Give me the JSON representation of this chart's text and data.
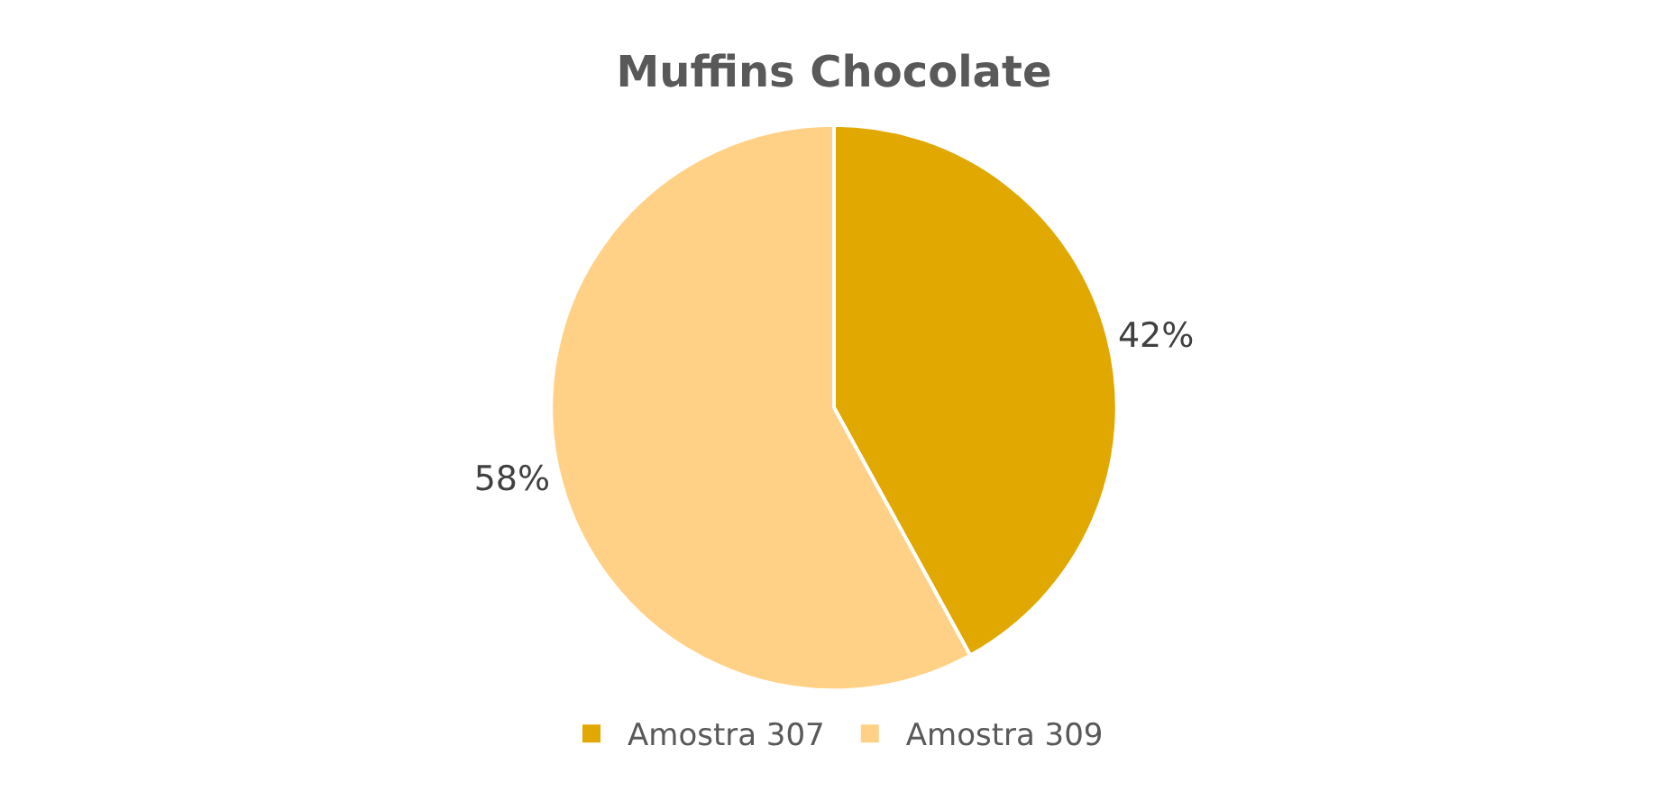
{
  "chart_data": {
    "type": "pie",
    "title": "Muffins Chocolate",
    "categories": [
      "Amostra 307",
      "Amostra 309"
    ],
    "values": [
      42,
      58
    ],
    "colors": [
      "#e0a800",
      "#ffd186"
    ],
    "value_labels": [
      "42%",
      "58%"
    ],
    "legend": "bottom"
  }
}
